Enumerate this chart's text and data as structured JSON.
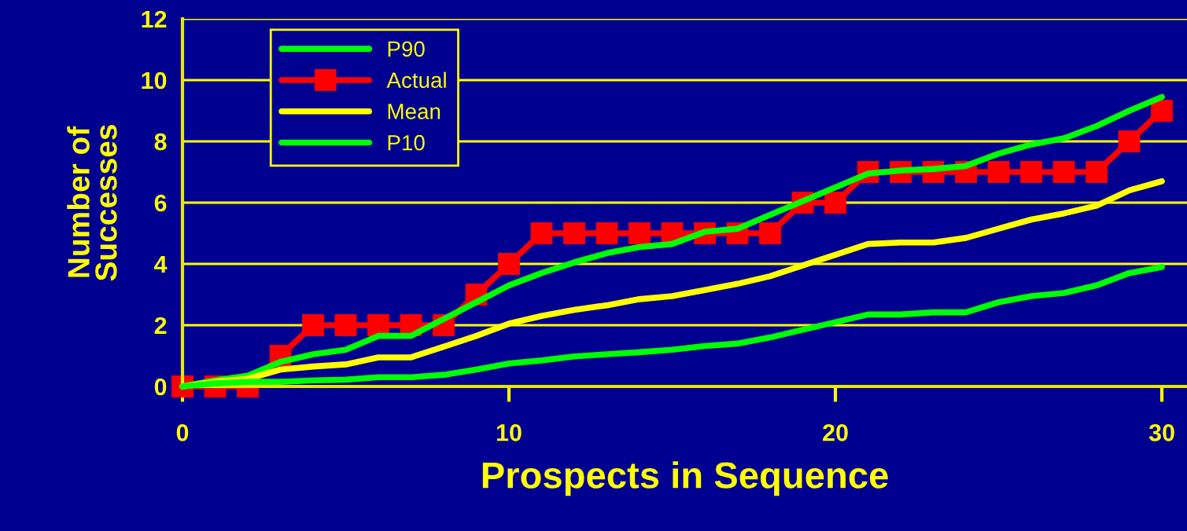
{
  "chart_data": {
    "type": "line",
    "xlabel": "Prospects in Sequence",
    "ylabel": "Number of\nSuccesses",
    "x": [
      0,
      1,
      2,
      3,
      4,
      5,
      6,
      7,
      8,
      9,
      10,
      11,
      12,
      13,
      14,
      15,
      16,
      17,
      18,
      19,
      20,
      21,
      22,
      23,
      24,
      25,
      26,
      27,
      28,
      29,
      30
    ],
    "xlim": [
      0,
      30.77
    ],
    "xticks": [
      0,
      10,
      20,
      30
    ],
    "ylim": [
      0,
      12
    ],
    "yticks": [
      0,
      2,
      4,
      6,
      8,
      10,
      12
    ],
    "grid": "y",
    "legend": "top left",
    "marker": "none",
    "line_style": "solid",
    "series": [
      {
        "name": "P90",
        "color": "#00ff00",
        "values": [
          0,
          0.2,
          0.35,
          0.8,
          1.05,
          1.2,
          1.65,
          1.65,
          2.2,
          2.75,
          3.3,
          3.7,
          4.05,
          4.35,
          4.55,
          4.65,
          5.05,
          5.15,
          5.6,
          6.05,
          6.5,
          6.95,
          7.05,
          7.1,
          7.2,
          7.6,
          7.9,
          8.1,
          8.5,
          9.0,
          9.45
        ]
      },
      {
        "name": "Actual",
        "color": "#ff0000",
        "marker": "square",
        "values": [
          0,
          0,
          0,
          1,
          2,
          2,
          2,
          2,
          2,
          3,
          4,
          5,
          5,
          5,
          5,
          5,
          5,
          5,
          5,
          6,
          6,
          7,
          7,
          7,
          7,
          7,
          7,
          7,
          7,
          8,
          9
        ]
      },
      {
        "name": "Mean",
        "color": "#ffff00",
        "values": [
          0,
          0.15,
          0.25,
          0.55,
          0.65,
          0.72,
          0.95,
          0.95,
          1.3,
          1.65,
          2.05,
          2.3,
          2.5,
          2.65,
          2.85,
          2.95,
          3.15,
          3.35,
          3.6,
          3.95,
          4.3,
          4.65,
          4.7,
          4.7,
          4.85,
          5.15,
          5.45,
          5.65,
          5.9,
          6.4,
          6.7
        ]
      },
      {
        "name": "P10",
        "color": "#00ff00",
        "values": [
          0,
          0.1,
          0.15,
          0.15,
          0.2,
          0.22,
          0.3,
          0.3,
          0.38,
          0.55,
          0.75,
          0.85,
          0.98,
          1.05,
          1.12,
          1.2,
          1.32,
          1.4,
          1.6,
          1.85,
          2.1,
          2.35,
          2.35,
          2.42,
          2.42,
          2.75,
          2.95,
          3.05,
          3.3,
          3.7,
          3.9
        ]
      }
    ]
  }
}
